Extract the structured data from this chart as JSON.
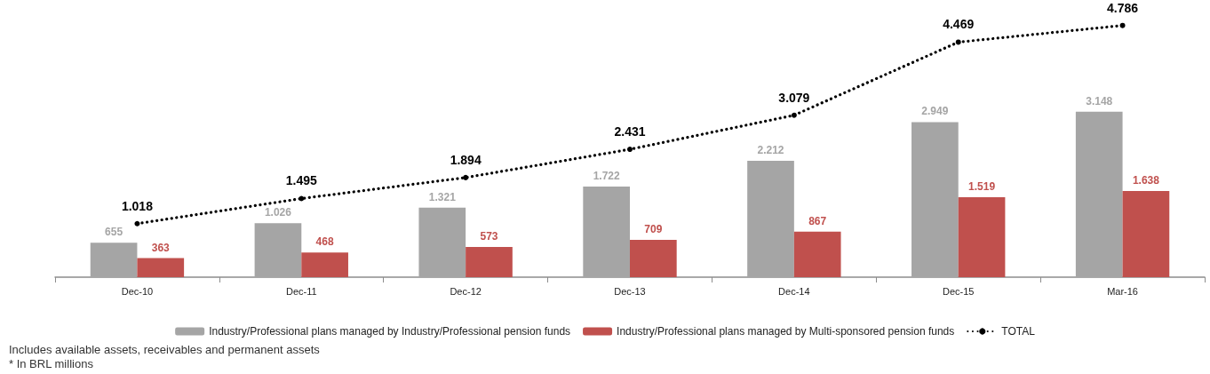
{
  "chart_data": {
    "type": "bar",
    "categories": [
      "Dec-10",
      "Dec-11",
      "Dec-12",
      "Dec-13",
      "Dec-14",
      "Dec-15",
      "Mar-16"
    ],
    "series": [
      {
        "name": "Industry/Professional plans managed by Industry/Professional pension funds",
        "color": "#a5a5a5",
        "values": [
          655,
          1026,
          1321,
          1722,
          2212,
          2949,
          3148
        ],
        "value_labels": [
          "655",
          "1.026",
          "1.321",
          "1.722",
          "2.212",
          "2.949",
          "3.148"
        ]
      },
      {
        "name": "Industry/Professional plans managed by Multi-sponsored pension funds",
        "color": "#c0504d",
        "values": [
          363,
          468,
          573,
          709,
          867,
          1519,
          1638
        ],
        "value_labels": [
          "363",
          "468",
          "573",
          "709",
          "867",
          "1.519",
          "1.638"
        ]
      },
      {
        "name": "TOTAL",
        "type": "line",
        "color": "#000000",
        "values": [
          1018,
          1495,
          1894,
          2431,
          3079,
          4469,
          4786
        ],
        "value_labels": [
          "1.018",
          "1.495",
          "1.894",
          "2.431",
          "3.079",
          "4.469",
          "4.786"
        ]
      }
    ],
    "marker": "circle",
    "line_style": "dotted",
    "legend": "bottom",
    "grid": false,
    "tick_labels": "x",
    "annotations": [
      "Includes available assets, receivables and permanent assets",
      "* In BRL millions"
    ]
  }
}
